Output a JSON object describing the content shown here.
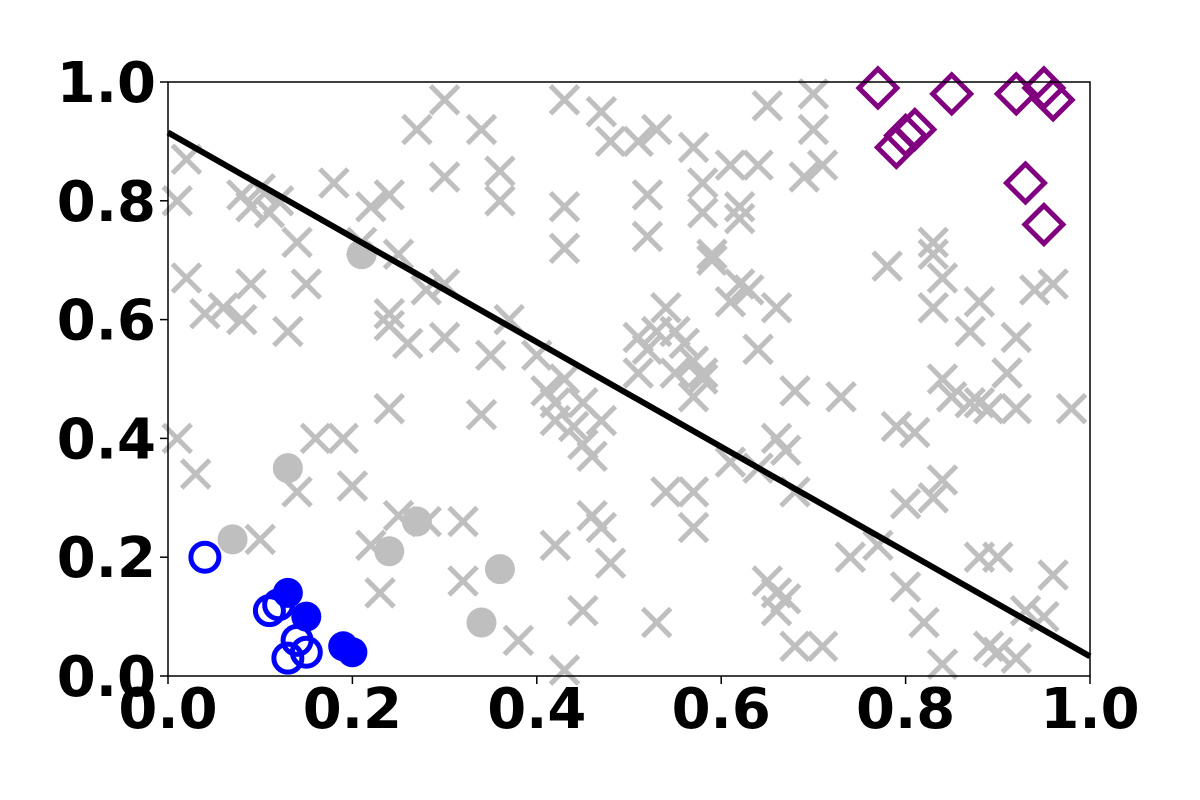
{
  "chart_data": {
    "type": "scatter",
    "title": "",
    "xlabel": "",
    "ylabel": "",
    "xlim": [
      0.0,
      1.0
    ],
    "ylim": [
      0.0,
      1.0
    ],
    "xticks": [
      "0.0",
      "0.2",
      "0.4",
      "0.6",
      "0.8",
      "1.0"
    ],
    "yticks": [
      "0.0",
      "0.2",
      "0.4",
      "0.6",
      "0.8",
      "1.0"
    ],
    "grid": false,
    "colors": {
      "gray": "#bfbfbf",
      "blue": "#0000ff",
      "purple": "#800080",
      "line": "#000000",
      "axes": "#000000"
    },
    "series": [
      {
        "marker": "x",
        "color": "#bfbfbf",
        "points": [
          [
            0.02,
            0.87
          ],
          [
            0.01,
            0.8
          ],
          [
            0.08,
            0.81
          ],
          [
            0.09,
            0.79
          ],
          [
            0.11,
            0.78
          ],
          [
            0.1,
            0.82
          ],
          [
            0.12,
            0.8
          ],
          [
            0.14,
            0.73
          ],
          [
            0.02,
            0.67
          ],
          [
            0.04,
            0.61
          ],
          [
            0.06,
            0.62
          ],
          [
            0.08,
            0.6
          ],
          [
            0.09,
            0.66
          ],
          [
            0.13,
            0.58
          ],
          [
            0.15,
            0.66
          ],
          [
            0.01,
            0.4
          ],
          [
            0.03,
            0.34
          ],
          [
            0.1,
            0.23
          ],
          [
            0.14,
            0.31
          ],
          [
            0.16,
            0.4
          ],
          [
            0.19,
            0.4
          ],
          [
            0.2,
            0.32
          ],
          [
            0.22,
            0.22
          ],
          [
            0.23,
            0.14
          ],
          [
            0.25,
            0.27
          ],
          [
            0.18,
            0.83
          ],
          [
            0.22,
            0.79
          ],
          [
            0.24,
            0.81
          ],
          [
            0.21,
            0.73
          ],
          [
            0.25,
            0.71
          ],
          [
            0.24,
            0.61
          ],
          [
            0.24,
            0.59
          ],
          [
            0.26,
            0.56
          ],
          [
            0.28,
            0.65
          ],
          [
            0.3,
            0.66
          ],
          [
            0.3,
            0.57
          ],
          [
            0.24,
            0.45
          ],
          [
            0.28,
            0.26
          ],
          [
            0.32,
            0.26
          ],
          [
            0.32,
            0.16
          ],
          [
            0.35,
            0.54
          ],
          [
            0.34,
            0.44
          ],
          [
            0.38,
            0.06
          ],
          [
            0.27,
            0.92
          ],
          [
            0.3,
            0.84
          ],
          [
            0.3,
            0.97
          ],
          [
            0.34,
            0.92
          ],
          [
            0.36,
            0.85
          ],
          [
            0.36,
            0.8
          ],
          [
            0.37,
            0.6
          ],
          [
            0.4,
            0.54
          ],
          [
            0.41,
            0.48
          ],
          [
            0.42,
            0.46
          ],
          [
            0.43,
            0.5
          ],
          [
            0.42,
            0.43
          ],
          [
            0.44,
            0.42
          ],
          [
            0.45,
            0.39
          ],
          [
            0.46,
            0.37
          ],
          [
            0.47,
            0.43
          ],
          [
            0.45,
            0.46
          ],
          [
            0.43,
            0.72
          ],
          [
            0.43,
            0.79
          ],
          [
            0.42,
            0.22
          ],
          [
            0.43,
            0.01
          ],
          [
            0.46,
            0.27
          ],
          [
            0.47,
            0.25
          ],
          [
            0.48,
            0.19
          ],
          [
            0.45,
            0.11
          ],
          [
            0.43,
            0.97
          ],
          [
            0.47,
            0.95
          ],
          [
            0.48,
            0.9
          ],
          [
            0.51,
            0.9
          ],
          [
            0.53,
            0.92
          ],
          [
            0.52,
            0.81
          ],
          [
            0.52,
            0.74
          ],
          [
            0.51,
            0.57
          ],
          [
            0.53,
            0.58
          ],
          [
            0.52,
            0.55
          ],
          [
            0.54,
            0.62
          ],
          [
            0.55,
            0.58
          ],
          [
            0.56,
            0.56
          ],
          [
            0.58,
            0.51
          ],
          [
            0.57,
            0.53
          ],
          [
            0.55,
            0.51
          ],
          [
            0.51,
            0.51
          ],
          [
            0.57,
            0.47
          ],
          [
            0.58,
            0.5
          ],
          [
            0.54,
            0.31
          ],
          [
            0.57,
            0.31
          ],
          [
            0.57,
            0.25
          ],
          [
            0.53,
            0.09
          ],
          [
            0.57,
            0.89
          ],
          [
            0.61,
            0.86
          ],
          [
            0.62,
            0.79
          ],
          [
            0.62,
            0.77
          ],
          [
            0.58,
            0.83
          ],
          [
            0.58,
            0.78
          ],
          [
            0.59,
            0.71
          ],
          [
            0.59,
            0.7
          ],
          [
            0.61,
            0.63
          ],
          [
            0.63,
            0.65
          ],
          [
            0.62,
            0.66
          ],
          [
            0.66,
            0.62
          ],
          [
            0.64,
            0.55
          ],
          [
            0.61,
            0.36
          ],
          [
            0.64,
            0.35
          ],
          [
            0.66,
            0.4
          ],
          [
            0.67,
            0.38
          ],
          [
            0.68,
            0.31
          ],
          [
            0.68,
            0.48
          ],
          [
            0.65,
            0.16
          ],
          [
            0.66,
            0.14
          ],
          [
            0.67,
            0.13
          ],
          [
            0.66,
            0.11
          ],
          [
            0.68,
            0.05
          ],
          [
            0.64,
            0.86
          ],
          [
            0.65,
            0.96
          ],
          [
            0.7,
            0.98
          ],
          [
            0.7,
            0.92
          ],
          [
            0.69,
            0.84
          ],
          [
            0.71,
            0.86
          ],
          [
            0.73,
            0.47
          ],
          [
            0.74,
            0.2
          ],
          [
            0.71,
            0.05
          ],
          [
            0.77,
            0.22
          ],
          [
            0.78,
            0.69
          ],
          [
            0.79,
            0.42
          ],
          [
            0.81,
            0.41
          ],
          [
            0.8,
            0.29
          ],
          [
            0.8,
            0.15
          ],
          [
            0.82,
            0.09
          ],
          [
            0.83,
            0.73
          ],
          [
            0.83,
            0.71
          ],
          [
            0.84,
            0.67
          ],
          [
            0.83,
            0.62
          ],
          [
            0.84,
            0.5
          ],
          [
            0.85,
            0.47
          ],
          [
            0.83,
            0.3
          ],
          [
            0.84,
            0.33
          ],
          [
            0.84,
            0.02
          ],
          [
            0.87,
            0.58
          ],
          [
            0.88,
            0.46
          ],
          [
            0.87,
            0.46
          ],
          [
            0.88,
            0.63
          ],
          [
            0.89,
            0.45
          ],
          [
            0.91,
            0.51
          ],
          [
            0.92,
            0.57
          ],
          [
            0.92,
            0.45
          ],
          [
            0.94,
            0.65
          ],
          [
            0.96,
            0.66
          ],
          [
            0.98,
            0.45
          ],
          [
            0.88,
            0.2
          ],
          [
            0.9,
            0.2
          ],
          [
            0.89,
            0.05
          ],
          [
            0.9,
            0.04
          ],
          [
            0.92,
            0.03
          ],
          [
            0.93,
            0.11
          ],
          [
            0.95,
            0.1
          ],
          [
            0.96,
            0.17
          ]
        ]
      },
      {
        "marker": "circle-filled",
        "color": "#bfbfbf",
        "points": [
          [
            0.07,
            0.23
          ],
          [
            0.13,
            0.35
          ],
          [
            0.21,
            0.71
          ],
          [
            0.24,
            0.21
          ],
          [
            0.27,
            0.26
          ],
          [
            0.34,
            0.09
          ],
          [
            0.36,
            0.18
          ]
        ]
      },
      {
        "marker": "circle-filled",
        "color": "#0000ff",
        "points": [
          [
            0.13,
            0.14
          ],
          [
            0.15,
            0.1
          ],
          [
            0.19,
            0.05
          ],
          [
            0.2,
            0.04
          ]
        ]
      },
      {
        "marker": "circle-open",
        "color": "#0000ff",
        "points": [
          [
            0.04,
            0.2
          ],
          [
            0.11,
            0.11
          ],
          [
            0.12,
            0.12
          ],
          [
            0.13,
            0.03
          ],
          [
            0.14,
            0.06
          ],
          [
            0.15,
            0.04
          ]
        ]
      },
      {
        "marker": "diamond-open",
        "color": "#800080",
        "points": [
          [
            0.77,
            0.99
          ],
          [
            0.79,
            0.89
          ],
          [
            0.8,
            0.91
          ],
          [
            0.81,
            0.92
          ],
          [
            0.85,
            0.98
          ],
          [
            0.92,
            0.98
          ],
          [
            0.95,
            0.99
          ],
          [
            0.96,
            0.97
          ],
          [
            0.93,
            0.83
          ],
          [
            0.95,
            0.76
          ]
        ]
      }
    ],
    "decision_line": {
      "x": [
        0.0,
        1.0
      ],
      "y": [
        0.915,
        0.033
      ]
    }
  }
}
